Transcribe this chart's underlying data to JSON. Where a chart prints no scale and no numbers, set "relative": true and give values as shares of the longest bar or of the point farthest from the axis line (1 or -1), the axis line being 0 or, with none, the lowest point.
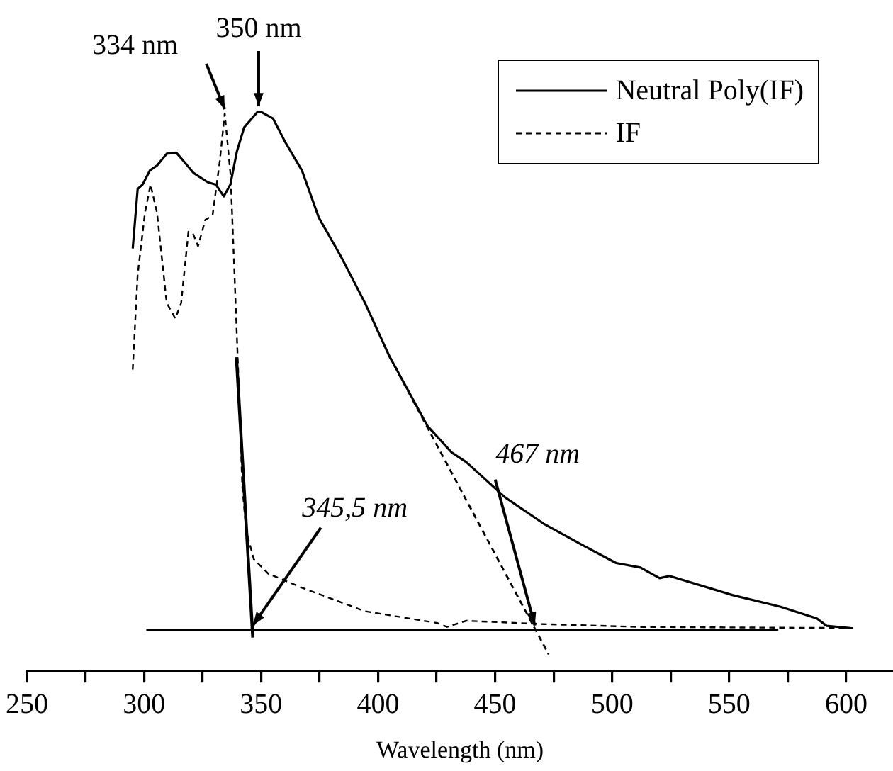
{
  "chart_data": {
    "type": "line",
    "relative": true,
    "xlabel": "Wavelength (nm)",
    "xlim": [
      250,
      620
    ],
    "xticks": [
      250,
      {
        "value": 275,
        "label": null
      },
      300,
      {
        "value": 325,
        "label": null
      },
      350,
      {
        "value": 375,
        "label": null
      },
      400,
      {
        "value": 425,
        "label": null
      },
      450,
      {
        "value": 475,
        "label": null
      },
      500,
      {
        "value": 525,
        "label": null
      },
      550,
      {
        "value": 575,
        "label": null
      },
      600
    ],
    "legend": "top right",
    "grid": false,
    "marker": "none",
    "tick_labels": "x",
    "series": [
      {
        "name": "Neutral Poly(IF)",
        "color": "#000000",
        "line_style": "solid",
        "x": [
          295.2,
          297.3,
          299.4,
          302.5,
          305.6,
          309.7,
          313.8,
          316.9,
          321.1,
          327.3,
          330.7,
          334.1,
          336.9,
          339.7,
          342.8,
          349,
          355.1,
          360.3,
          367.5,
          374.7,
          384,
          394.4,
          404.7,
          421.2,
          431.5,
          437.7,
          454.3,
          470.8,
          487.3,
          501.7,
          512.1,
          520.3,
          524.5,
          551.3,
          572,
          587.5,
          591.6,
          601.9
        ],
        "values": [
          0.754,
          0.86,
          0.868,
          0.893,
          0.902,
          0.923,
          0.925,
          0.91,
          0.889,
          0.872,
          0.868,
          0.847,
          0.868,
          0.927,
          0.97,
          1,
          0.986,
          0.944,
          0.893,
          0.809,
          0.741,
          0.657,
          0.563,
          0.437,
          0.39,
          0.373,
          0.31,
          0.263,
          0.225,
          0.193,
          0.185,
          0.166,
          0.17,
          0.136,
          0.115,
          0.094,
          0.081,
          0.077
        ]
      },
      {
        "name": "IF",
        "color": "#000000",
        "line_style": "dashed",
        "x": [
          295.2,
          297.3,
          300.4,
          302.8,
          305.6,
          309.7,
          313.4,
          315.9,
          319,
          321.1,
          323.1,
          326.2,
          329.3,
          332.4,
          334.5,
          337,
          339,
          340.7,
          342,
          343.7,
          346.9,
          353.1,
          367.5,
          394.4,
          425.3,
          429.5,
          437.7,
          470.8,
          512.1,
          603
        ],
        "values": [
          0.538,
          0.707,
          0.817,
          0.868,
          0.817,
          0.657,
          0.629,
          0.657,
          0.784,
          0.779,
          0.758,
          0.805,
          0.813,
          0.91,
          0.995,
          0.885,
          0.673,
          0.487,
          0.33,
          0.25,
          0.2,
          0.174,
          0.149,
          0.107,
          0.086,
          0.079,
          0.09,
          0.084,
          0.079,
          0.077
        ]
      },
      {
        "color": "#000000",
        "line_style": "solid",
        "x": [
          301,
          571
        ],
        "values": [
          0.074,
          0.074
        ]
      },
      {
        "color": "#000000",
        "line_style": "solid",
        "x": [
          339.5,
          346.5
        ],
        "values": [
          0.56,
          0.06
        ]
      },
      {
        "color": "#000000",
        "line_style": "dashed",
        "x": [
          404.7,
          472.9
        ],
        "values": [
          0.563,
          0.03
        ]
      }
    ],
    "annotations": [
      {
        "text": "334 nm",
        "x": 334.5,
        "y": 0.995
      },
      {
        "text": "350 nm",
        "x": 349,
        "y": 1
      },
      {
        "text": "345,5 nm",
        "x": 346.5,
        "y": 0.074
      },
      {
        "text": "467 nm",
        "x": 467,
        "y": 0.074
      }
    ]
  }
}
